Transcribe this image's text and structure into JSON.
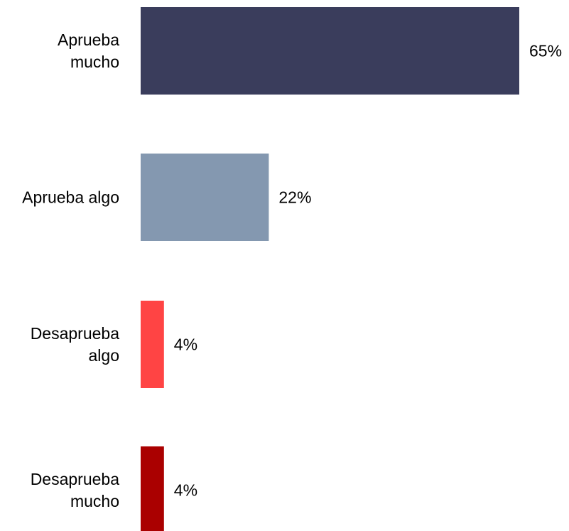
{
  "chart_data": {
    "type": "bar",
    "orientation": "horizontal",
    "categories": [
      [
        "Aprueba",
        "mucho"
      ],
      [
        "Aprueba algo"
      ],
      [
        "Desaprueba",
        "algo"
      ],
      [
        "Desaprueba",
        "mucho"
      ]
    ],
    "values": [
      65,
      22,
      4,
      4
    ],
    "value_labels": [
      "65%",
      "22%",
      "4%",
      "4%"
    ],
    "colors": [
      "#3a3d5c",
      "#8498b0",
      "#ff4444",
      "#aa0000"
    ],
    "xlim": [
      0,
      65
    ],
    "grid": false,
    "legend": "none",
    "title": "",
    "xlabel": "",
    "ylabel": ""
  }
}
